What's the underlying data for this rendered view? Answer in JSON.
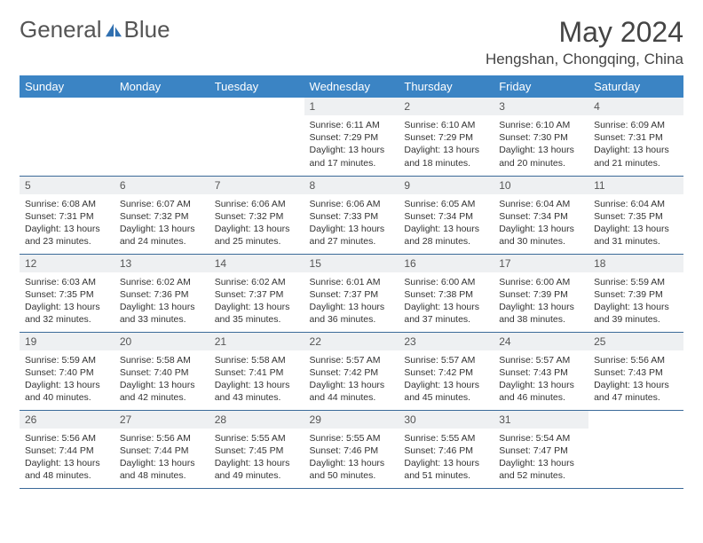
{
  "brand": {
    "part1": "General",
    "part2": "Blue"
  },
  "colors": {
    "header_bg": "#3b84c4",
    "header_text": "#ffffff",
    "daynum_bg": "#eef0f2",
    "rule": "#3b6a99",
    "logo_text": "#555555",
    "sail_color": "#2f6fb0"
  },
  "title": "May 2024",
  "location": "Hengshan, Chongqing, China",
  "weekdays": [
    "Sunday",
    "Monday",
    "Tuesday",
    "Wednesday",
    "Thursday",
    "Friday",
    "Saturday"
  ],
  "labels": {
    "sunrise": "Sunrise:",
    "sunset": "Sunset:",
    "daylight": "Daylight:"
  },
  "weeks": [
    [
      null,
      null,
      null,
      {
        "n": "1",
        "sunrise": "6:11 AM",
        "sunset": "7:29 PM",
        "daylight": "13 hours and 17 minutes."
      },
      {
        "n": "2",
        "sunrise": "6:10 AM",
        "sunset": "7:29 PM",
        "daylight": "13 hours and 18 minutes."
      },
      {
        "n": "3",
        "sunrise": "6:10 AM",
        "sunset": "7:30 PM",
        "daylight": "13 hours and 20 minutes."
      },
      {
        "n": "4",
        "sunrise": "6:09 AM",
        "sunset": "7:31 PM",
        "daylight": "13 hours and 21 minutes."
      }
    ],
    [
      {
        "n": "5",
        "sunrise": "6:08 AM",
        "sunset": "7:31 PM",
        "daylight": "13 hours and 23 minutes."
      },
      {
        "n": "6",
        "sunrise": "6:07 AM",
        "sunset": "7:32 PM",
        "daylight": "13 hours and 24 minutes."
      },
      {
        "n": "7",
        "sunrise": "6:06 AM",
        "sunset": "7:32 PM",
        "daylight": "13 hours and 25 minutes."
      },
      {
        "n": "8",
        "sunrise": "6:06 AM",
        "sunset": "7:33 PM",
        "daylight": "13 hours and 27 minutes."
      },
      {
        "n": "9",
        "sunrise": "6:05 AM",
        "sunset": "7:34 PM",
        "daylight": "13 hours and 28 minutes."
      },
      {
        "n": "10",
        "sunrise": "6:04 AM",
        "sunset": "7:34 PM",
        "daylight": "13 hours and 30 minutes."
      },
      {
        "n": "11",
        "sunrise": "6:04 AM",
        "sunset": "7:35 PM",
        "daylight": "13 hours and 31 minutes."
      }
    ],
    [
      {
        "n": "12",
        "sunrise": "6:03 AM",
        "sunset": "7:35 PM",
        "daylight": "13 hours and 32 minutes."
      },
      {
        "n": "13",
        "sunrise": "6:02 AM",
        "sunset": "7:36 PM",
        "daylight": "13 hours and 33 minutes."
      },
      {
        "n": "14",
        "sunrise": "6:02 AM",
        "sunset": "7:37 PM",
        "daylight": "13 hours and 35 minutes."
      },
      {
        "n": "15",
        "sunrise": "6:01 AM",
        "sunset": "7:37 PM",
        "daylight": "13 hours and 36 minutes."
      },
      {
        "n": "16",
        "sunrise": "6:00 AM",
        "sunset": "7:38 PM",
        "daylight": "13 hours and 37 minutes."
      },
      {
        "n": "17",
        "sunrise": "6:00 AM",
        "sunset": "7:39 PM",
        "daylight": "13 hours and 38 minutes."
      },
      {
        "n": "18",
        "sunrise": "5:59 AM",
        "sunset": "7:39 PM",
        "daylight": "13 hours and 39 minutes."
      }
    ],
    [
      {
        "n": "19",
        "sunrise": "5:59 AM",
        "sunset": "7:40 PM",
        "daylight": "13 hours and 40 minutes."
      },
      {
        "n": "20",
        "sunrise": "5:58 AM",
        "sunset": "7:40 PM",
        "daylight": "13 hours and 42 minutes."
      },
      {
        "n": "21",
        "sunrise": "5:58 AM",
        "sunset": "7:41 PM",
        "daylight": "13 hours and 43 minutes."
      },
      {
        "n": "22",
        "sunrise": "5:57 AM",
        "sunset": "7:42 PM",
        "daylight": "13 hours and 44 minutes."
      },
      {
        "n": "23",
        "sunrise": "5:57 AM",
        "sunset": "7:42 PM",
        "daylight": "13 hours and 45 minutes."
      },
      {
        "n": "24",
        "sunrise": "5:57 AM",
        "sunset": "7:43 PM",
        "daylight": "13 hours and 46 minutes."
      },
      {
        "n": "25",
        "sunrise": "5:56 AM",
        "sunset": "7:43 PM",
        "daylight": "13 hours and 47 minutes."
      }
    ],
    [
      {
        "n": "26",
        "sunrise": "5:56 AM",
        "sunset": "7:44 PM",
        "daylight": "13 hours and 48 minutes."
      },
      {
        "n": "27",
        "sunrise": "5:56 AM",
        "sunset": "7:44 PM",
        "daylight": "13 hours and 48 minutes."
      },
      {
        "n": "28",
        "sunrise": "5:55 AM",
        "sunset": "7:45 PM",
        "daylight": "13 hours and 49 minutes."
      },
      {
        "n": "29",
        "sunrise": "5:55 AM",
        "sunset": "7:46 PM",
        "daylight": "13 hours and 50 minutes."
      },
      {
        "n": "30",
        "sunrise": "5:55 AM",
        "sunset": "7:46 PM",
        "daylight": "13 hours and 51 minutes."
      },
      {
        "n": "31",
        "sunrise": "5:54 AM",
        "sunset": "7:47 PM",
        "daylight": "13 hours and 52 minutes."
      },
      null
    ]
  ]
}
